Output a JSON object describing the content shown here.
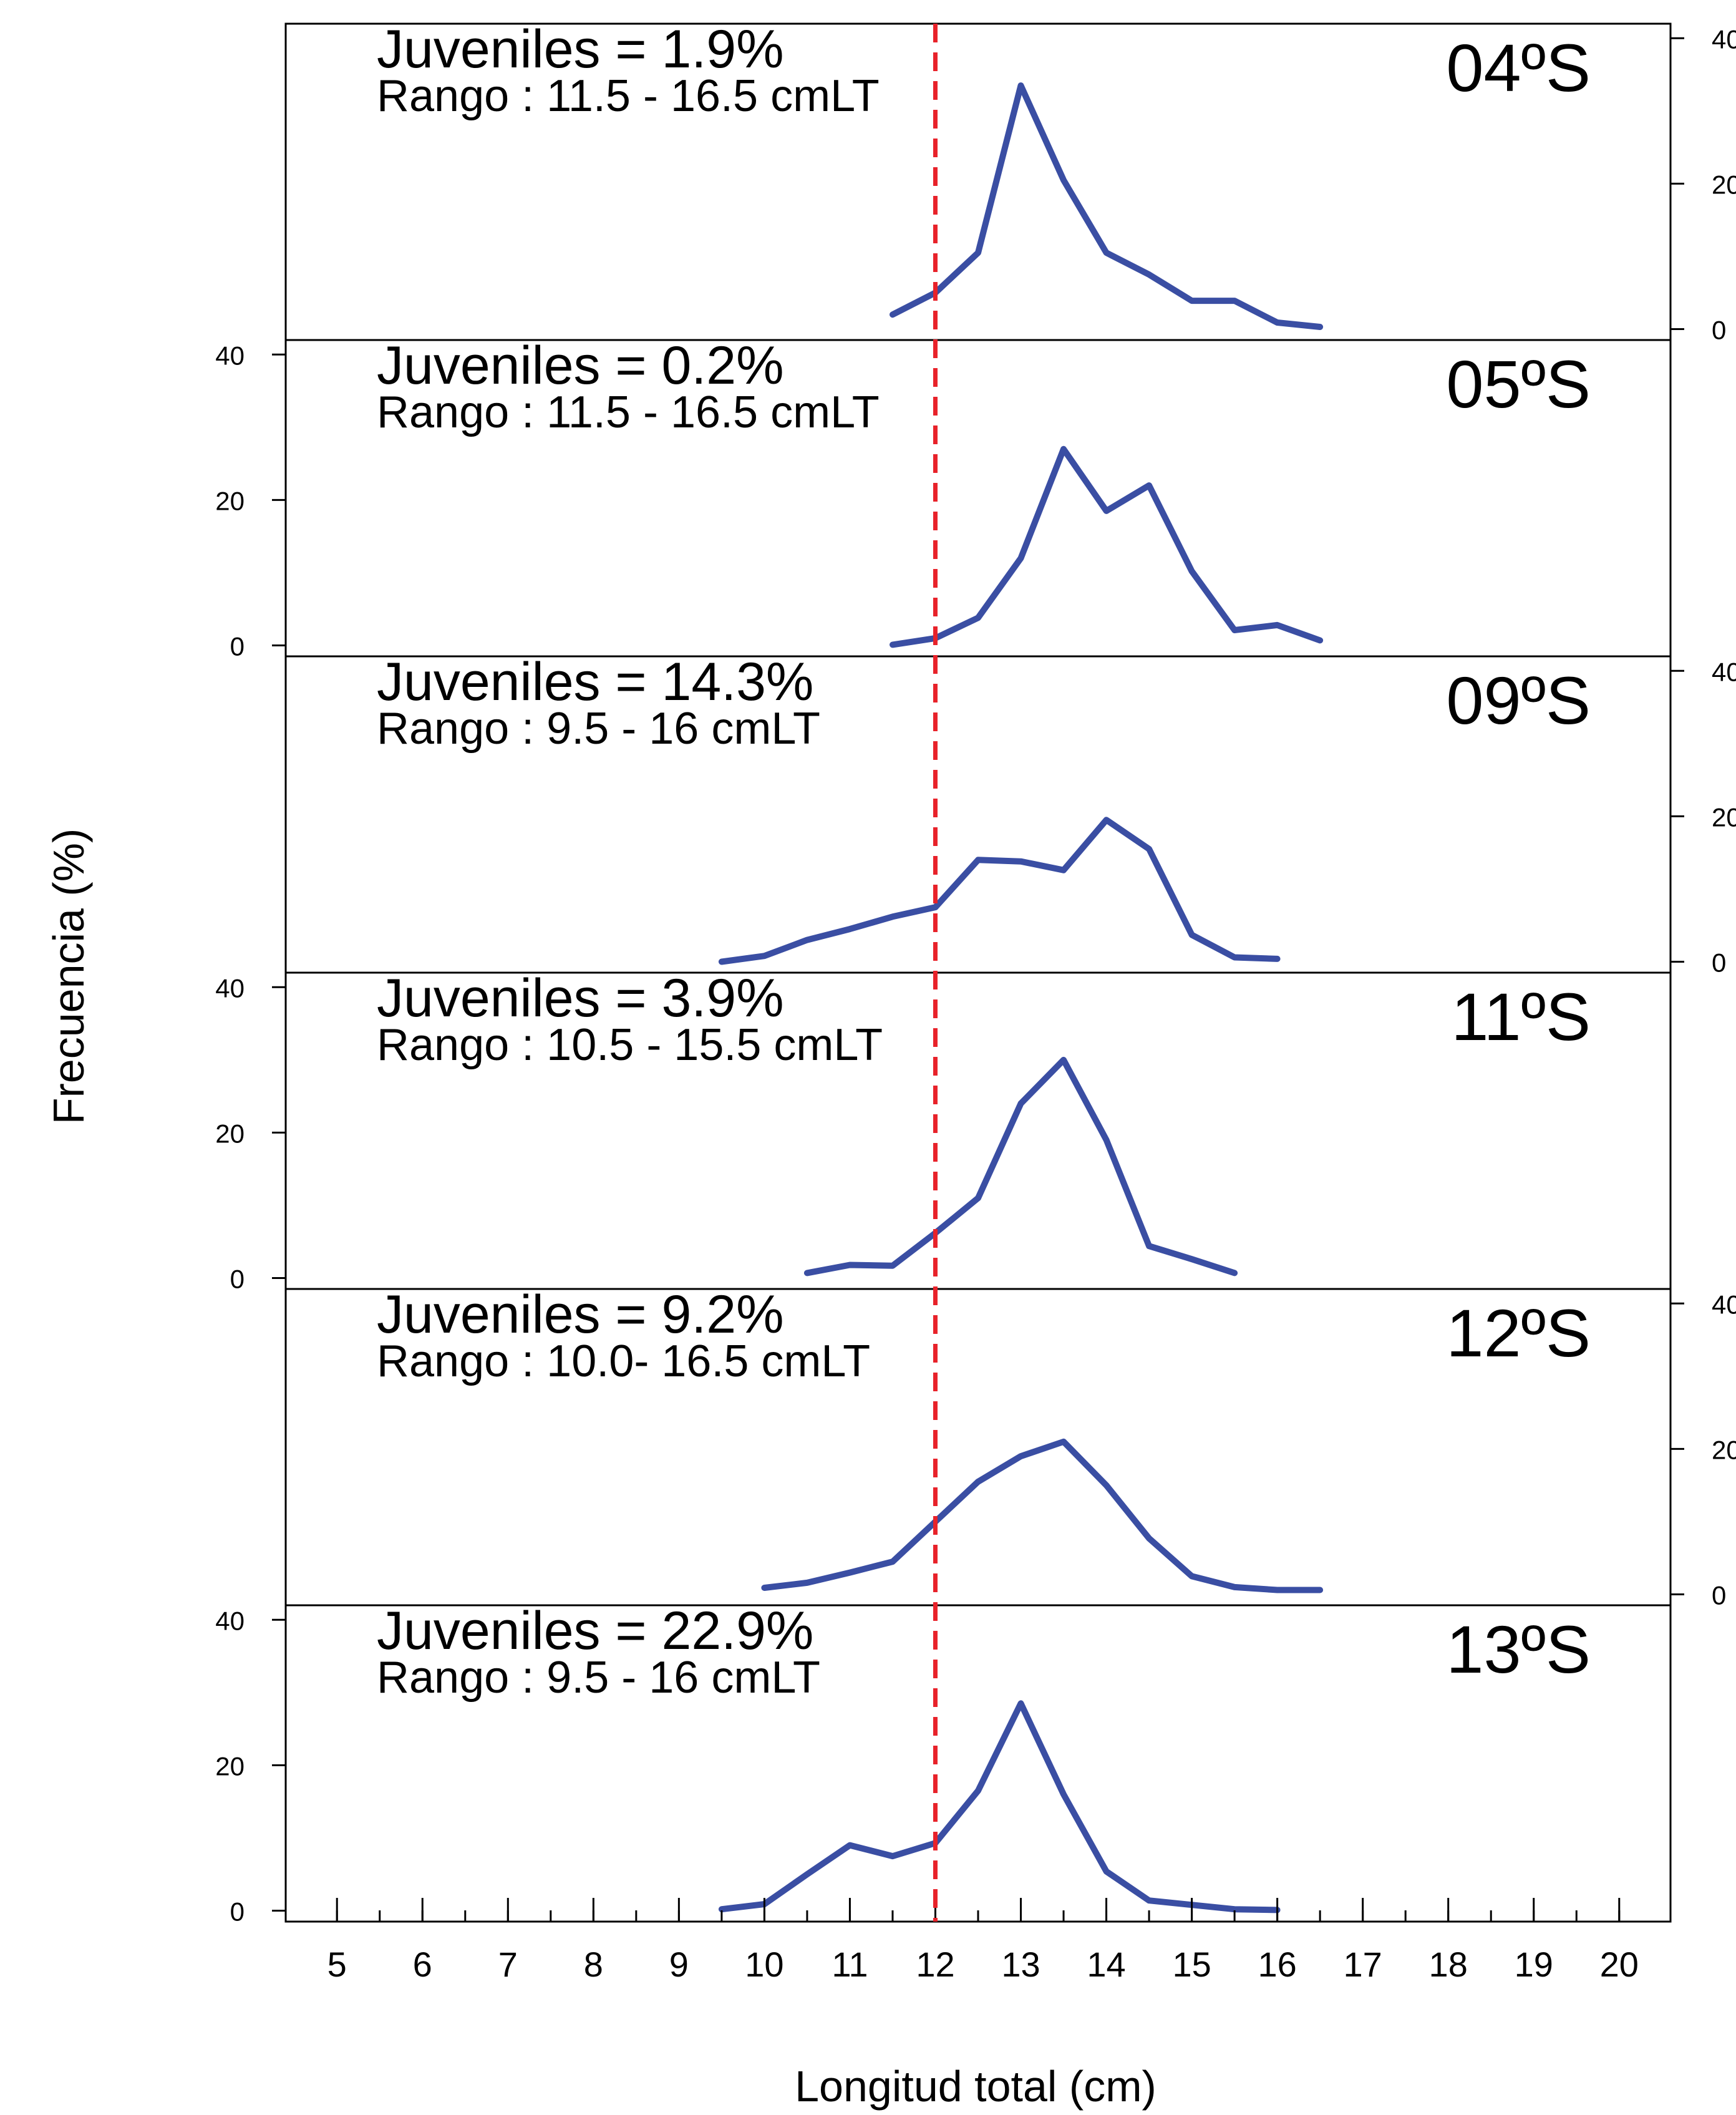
{
  "chart_data": {
    "type": "line",
    "xlabel": "Longitud total (cm)",
    "ylabel": "Frecuencia (%)",
    "xlim": [
      4.4,
      20.6
    ],
    "ylim": [
      -1.5,
      42
    ],
    "x_ticks": [
      5,
      6,
      7,
      8,
      9,
      10,
      11,
      12,
      13,
      14,
      15,
      16,
      17,
      18,
      19,
      20
    ],
    "y_ticks": [
      0,
      20,
      40
    ],
    "y_tick_labels": [
      "0",
      "20",
      "40"
    ],
    "reference_line": {
      "x": 12,
      "color": "#e8222a",
      "style": "dashed"
    },
    "line_color": "#3a4ea3",
    "panels": [
      {
        "latitude_label": "04ºS",
        "juveniles_label": "Juveniles = 1.9%",
        "range_label": "Rango : 11.5 - 16.5 cmLT",
        "y_axis_side": "right",
        "x": [
          11.5,
          12,
          12.5,
          13,
          13.5,
          14,
          14.5,
          15,
          15.5,
          16,
          16.5
        ],
        "y": [
          2,
          5,
          10.5,
          33.5,
          20.5,
          10.5,
          7.5,
          3.9,
          3.9,
          0.9,
          0.3
        ]
      },
      {
        "latitude_label": "05ºS",
        "juveniles_label": "Juveniles = 0.2%",
        "range_label": "Rango : 11.5 - 16.5 cmLT",
        "y_axis_side": "left",
        "x": [
          11.5,
          12,
          12.5,
          13,
          13.5,
          14,
          14.5,
          15,
          15.5,
          16,
          16.5
        ],
        "y": [
          0.1,
          1,
          3.8,
          12,
          27,
          18.5,
          22,
          10.2,
          2.1,
          2.8,
          0.7
        ]
      },
      {
        "latitude_label": "09ºS",
        "juveniles_label": "Juveniles = 14.3%",
        "range_label": "Rango : 9.5 - 16 cmLT",
        "y_axis_side": "right",
        "x": [
          9.5,
          10,
          10.5,
          11,
          11.5,
          12,
          12.5,
          13,
          13.5,
          14,
          14.5,
          15,
          15.5,
          16
        ],
        "y": [
          0,
          0.8,
          3,
          4.5,
          6.2,
          7.5,
          14,
          13.8,
          12.6,
          19.5,
          15.5,
          3.7,
          0.6,
          0.4
        ]
      },
      {
        "latitude_label": "11ºS",
        "juveniles_label": "Juveniles = 3.9%",
        "range_label": "Rango : 10.5 - 15.5 cmLT",
        "y_axis_side": "left",
        "x": [
          10.5,
          11,
          11.5,
          12,
          12.5,
          13,
          13.5,
          14,
          14.5,
          15,
          15.5
        ],
        "y": [
          0.7,
          1.8,
          1.7,
          6.2,
          11,
          24,
          30,
          19,
          4.4,
          2.6,
          0.7
        ]
      },
      {
        "latitude_label": "12ºS",
        "juveniles_label": "Juveniles = 9.2%",
        "range_label": "Rango : 10.0- 16.5 cmLT",
        "y_axis_side": "right",
        "x": [
          10,
          10.5,
          11,
          11.5,
          12,
          12.5,
          13,
          13.5,
          14,
          14.5,
          15,
          15.5,
          16,
          16.5
        ],
        "y": [
          0.9,
          1.6,
          3,
          4.5,
          10,
          15.5,
          19,
          21,
          15,
          7.7,
          2.5,
          1,
          0.6,
          0.6
        ]
      },
      {
        "latitude_label": "13ºS",
        "juveniles_label": "Juveniles = 22.9%",
        "range_label": "Rango : 9.5 - 16 cmLT",
        "y_axis_side": "left",
        "x": [
          9.5,
          10,
          10.5,
          11,
          11.5,
          12,
          12.5,
          13,
          13.5,
          14,
          14.5,
          15,
          15.5,
          16
        ],
        "y": [
          0.2,
          0.9,
          5,
          9,
          7.5,
          9.3,
          16.5,
          28.5,
          16,
          5.4,
          1.4,
          0.8,
          0.2,
          0.1
        ]
      }
    ]
  }
}
